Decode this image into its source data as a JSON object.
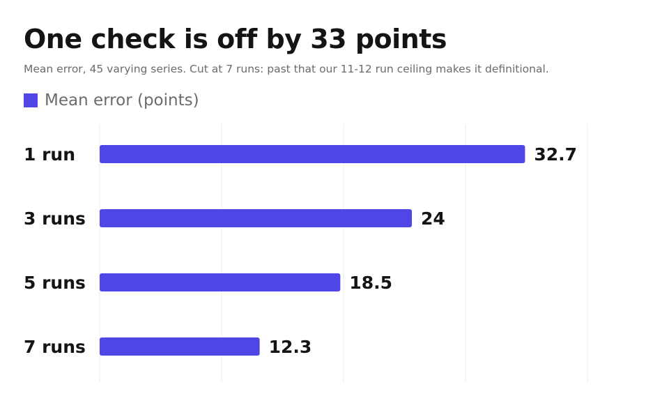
{
  "chart_data": {
    "type": "bar",
    "orientation": "horizontal",
    "title": "One check is off by 33 points",
    "subtitle": "Mean error, 45 varying series. Cut at 7 runs: past that our 11-12 run ceiling makes it definitional.",
    "categories": [
      "1 run",
      "3 runs",
      "5 runs",
      "7 runs"
    ],
    "series": [
      {
        "name": "Mean error (points)",
        "values": [
          32.7,
          24,
          18.5,
          12.3
        ],
        "color": "#4f46e5"
      }
    ],
    "data_labels": [
      "32.7",
      "24",
      "18.5",
      "12.3"
    ],
    "xlim": [
      0,
      37.5
    ],
    "grid": true,
    "legend": "top-left"
  }
}
